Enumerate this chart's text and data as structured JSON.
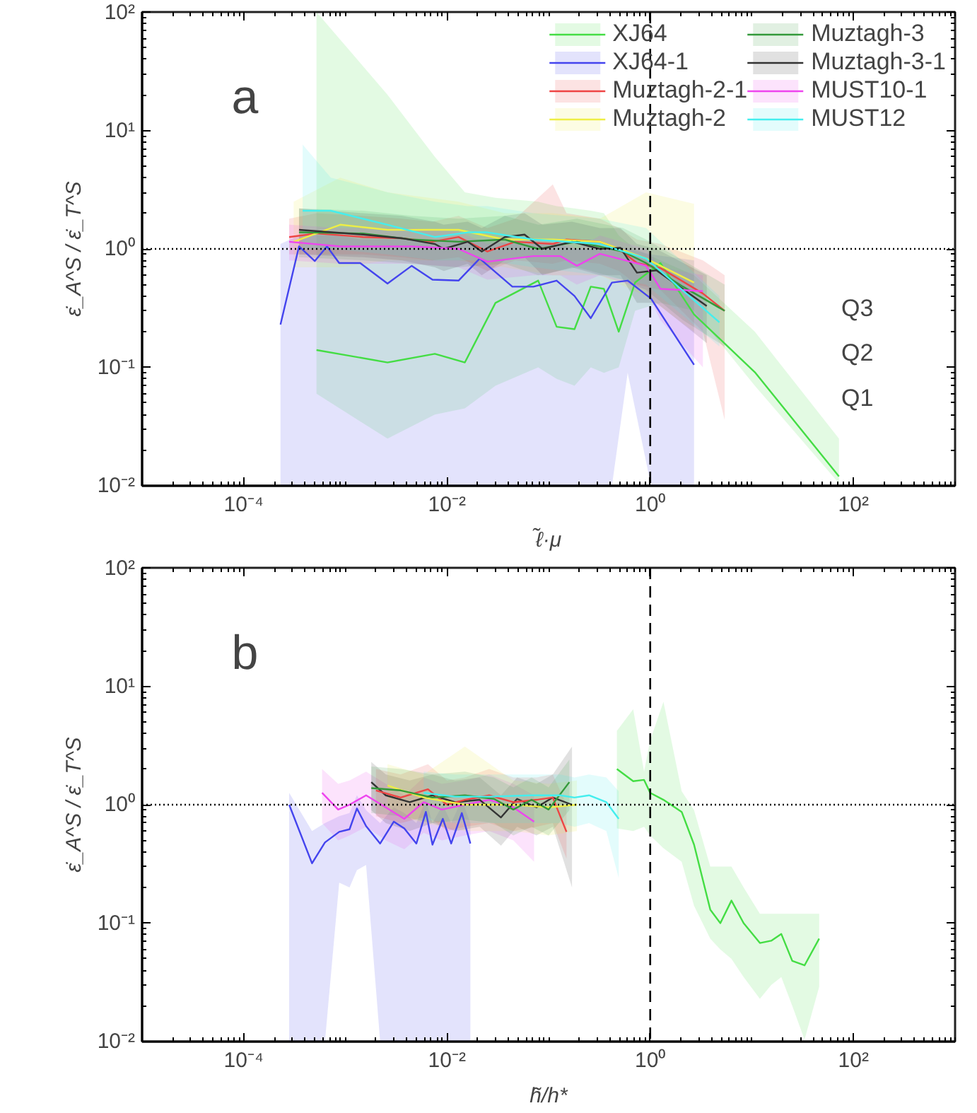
{
  "chart_data": [
    {
      "type": "line",
      "xlabel": "ℓ̃·μ",
      "ylabel": "ε̇_A^S / ε̇_T^S",
      "log": "xy",
      "grid": false,
      "legend": "top right",
      "xlim": [
        1e-05,
        1000
      ],
      "ylim": [
        0.01,
        100
      ],
      "xticks": [
        {
          "value": 0.0001,
          "label": "10⁻⁴"
        },
        {
          "value": 0.01,
          "label": "10⁻²"
        },
        {
          "value": 1,
          "label": "10⁰"
        },
        {
          "value": 100,
          "label": "10²"
        }
      ],
      "yticks": [
        {
          "value": 0.01,
          "label": "10⁻²"
        },
        {
          "value": 0.1,
          "label": "10⁻¹"
        },
        {
          "value": 1,
          "label": "10⁰"
        },
        {
          "value": 10,
          "label": "10¹"
        },
        {
          "value": 100,
          "label": "10²"
        }
      ],
      "ref_lines": [
        {
          "axis": "y",
          "value": 1,
          "line_style": "dotted",
          "color": "#000000"
        },
        {
          "axis": "x",
          "value": 1,
          "line_style": "dashed",
          "color": "#000000"
        }
      ],
      "annotations": [
        "a",
        "Q3",
        "Q2",
        "Q1"
      ],
      "series": [
        {
          "name": "XJ64",
          "color": "#44dd44",
          "x": [
            0.00052,
            0.0026,
            0.0076,
            0.015,
            0.03,
            0.079,
            0.12,
            0.18,
            0.26,
            0.35,
            0.49,
            0.71,
            1.26,
            2.7,
            10.7,
            72
          ],
          "values": [
            0.14,
            0.11,
            0.13,
            0.11,
            0.35,
            0.54,
            0.22,
            0.21,
            0.48,
            0.46,
            0.2,
            0.52,
            0.76,
            0.28,
            0.091,
            0.012
          ],
          "upper": [
            100,
            20,
            6,
            3,
            2.7,
            2.5,
            2.3,
            2.2,
            2.1,
            2,
            1.3,
            1,
            0.8,
            0.6,
            0.2,
            0.025
          ],
          "lower": [
            0.06,
            0.025,
            0.04,
            0.045,
            0.07,
            0.1,
            0.08,
            0.07,
            0.1,
            0.09,
            0.1,
            0.3,
            0.35,
            0.3,
            0.07,
            0.0105
          ]
        },
        {
          "name": "XJ64-1",
          "color": "#4444ee",
          "x": [
            0.00023,
            0.00035,
            0.0005,
            0.00066,
            0.00087,
            0.0014,
            0.0026,
            0.0045,
            0.0072,
            0.013,
            0.021,
            0.044,
            0.071,
            0.12,
            0.18,
            0.26,
            0.42,
            0.6,
            1.02,
            2.7
          ],
          "values": [
            0.23,
            1.05,
            0.79,
            1.05,
            0.76,
            0.76,
            0.51,
            0.72,
            0.55,
            0.54,
            0.83,
            0.48,
            0.48,
            0.54,
            0.4,
            0.26,
            0.52,
            0.54,
            0.38,
            0.105
          ],
          "upper": [
            1.1,
            1.3,
            1.3,
            1.3,
            1.3,
            1.2,
            1.2,
            1.2,
            1.2,
            1.2,
            1.2,
            1.1,
            1.1,
            1.1,
            1,
            1,
            1,
            1,
            0.9,
            0.8
          ],
          "lower": [
            0.01,
            0.01,
            0.01,
            0.01,
            0.01,
            0.01,
            0.01,
            0.01,
            0.01,
            0.01,
            0.01,
            0.01,
            0.01,
            0.01,
            0.01,
            0.01,
            0.01,
            0.09,
            0.01,
            0.01
          ]
        },
        {
          "name": "Muztagh-2-1",
          "color": "#ee4444",
          "x": [
            0.00028,
            0.00052,
            0.0015,
            0.0036,
            0.0072,
            0.013,
            0.025,
            0.047,
            0.11,
            0.15,
            0.32,
            0.49,
            0.74,
            1.26,
            3.3,
            5.4
          ],
          "values": [
            1.26,
            1.35,
            1.26,
            1.23,
            1.15,
            1.26,
            0.95,
            1.15,
            1.1,
            1.2,
            1.15,
            1,
            0.76,
            0.69,
            0.42,
            0.3
          ],
          "upper": [
            1.8,
            2,
            1.9,
            1.8,
            1.7,
            1.9,
            1.5,
            1.8,
            3.5,
            2,
            1.8,
            1.5,
            1.2,
            1.1,
            0.8,
            0.6
          ],
          "lower": [
            0.9,
            0.9,
            0.9,
            0.85,
            0.8,
            0.85,
            0.65,
            0.8,
            0.75,
            0.8,
            0.75,
            0.65,
            0.5,
            0.45,
            0.2,
            0.036
          ]
        },
        {
          "name": "Muztagh-2",
          "color": "#eeee44",
          "x": [
            0.00031,
            0.00089,
            0.0026,
            0.013,
            0.037,
            0.11,
            0.32,
            0.91,
            2.7
          ],
          "values": [
            1.15,
            1.6,
            1.45,
            1.45,
            1.2,
            1.2,
            1.15,
            0.83,
            0.52
          ],
          "upper": [
            2.5,
            4,
            3,
            2.5,
            2,
            2,
            1.8,
            3,
            2.4
          ],
          "lower": [
            0.7,
            0.7,
            0.8,
            0.8,
            0.7,
            0.6,
            0.6,
            0.4,
            0.2
          ]
        },
        {
          "name": "Muztagh-3",
          "color": "#33993a",
          "x": [
            0.00035,
            0.0015,
            0.0045,
            0.013,
            0.037,
            0.079,
            0.19,
            0.54,
            0.91,
            2.1,
            5.4
          ],
          "values": [
            1.38,
            1.35,
            1.2,
            1.15,
            1.2,
            1,
            1.15,
            0.95,
            0.76,
            0.48,
            0.3
          ],
          "upper": [
            2.2,
            2.1,
            1.9,
            1.8,
            1.9,
            1.6,
            1.8,
            1.5,
            1.2,
            0.8,
            0.5
          ],
          "lower": [
            0.85,
            0.8,
            0.75,
            0.7,
            0.75,
            0.6,
            0.7,
            0.55,
            0.45,
            0.25,
            0.15
          ]
        },
        {
          "name": "Muztagh-3-1",
          "color": "#333333",
          "x": [
            0.00035,
            0.0015,
            0.0036,
            0.0076,
            0.0093,
            0.016,
            0.022,
            0.037,
            0.058,
            0.087,
            0.17,
            0.32,
            0.51,
            0.74,
            1.15,
            3.6
          ],
          "values": [
            1.45,
            1.32,
            1.23,
            1.1,
            1,
            1.15,
            0.95,
            1.26,
            1.32,
            1,
            1.15,
            1,
            1.02,
            0.63,
            0.66,
            0.33
          ],
          "upper": [
            2.2,
            2,
            1.9,
            1.7,
            1.6,
            1.7,
            1.5,
            1.9,
            2,
            1.6,
            1.7,
            1.5,
            1.5,
            1.1,
            1,
            0.6
          ],
          "lower": [
            0.9,
            0.85,
            0.8,
            0.7,
            0.65,
            0.75,
            0.6,
            0.8,
            0.85,
            0.6,
            0.7,
            0.6,
            0.6,
            0.35,
            0.35,
            0.16
          ]
        },
        {
          "name": "MUST10-1",
          "color": "#ee44ee",
          "x": [
            0.00028,
            0.00089,
            0.0045,
            0.013,
            0.025,
            0.071,
            0.13,
            0.19,
            0.32,
            0.91,
            1.26,
            3.3
          ],
          "values": [
            1.15,
            1.05,
            1.05,
            1,
            0.78,
            0.87,
            0.87,
            0.72,
            0.91,
            0.72,
            0.46,
            0.44
          ],
          "upper": [
            1.6,
            1.5,
            1.5,
            1.4,
            1.1,
            1.2,
            1.2,
            1,
            1.3,
            1,
            0.7,
            0.6
          ],
          "lower": [
            0.8,
            0.75,
            0.75,
            0.7,
            0.55,
            0.6,
            0.6,
            0.5,
            0.6,
            0.45,
            0.25,
            0.1
          ]
        },
        {
          "name": "MUST12",
          "color": "#44eeee",
          "x": [
            0.00038,
            0.00072,
            0.0026,
            0.0076,
            0.016,
            0.025,
            0.071,
            0.32,
            0.91,
            4.8
          ],
          "values": [
            2.1,
            2.1,
            1.6,
            1.26,
            1.38,
            1.38,
            1.2,
            1.1,
            0.83,
            0.24
          ],
          "upper": [
            7.6,
            4,
            3,
            2.5,
            2.3,
            2.3,
            2,
            1.8,
            1.5,
            0.4
          ],
          "lower": [
            1,
            1,
            0.9,
            0.8,
            0.8,
            0.8,
            0.7,
            0.6,
            0.5,
            0.15
          ]
        }
      ]
    },
    {
      "type": "line",
      "xlabel": "h̃/h*",
      "ylabel": "ε̇_A^S / ε̇_T^S",
      "log": "xy",
      "grid": false,
      "xlim": [
        1e-05,
        1000
      ],
      "ylim": [
        0.01,
        100
      ],
      "xticks": [
        {
          "value": 0.0001,
          "label": "10⁻⁴"
        },
        {
          "value": 0.01,
          "label": "10⁻²"
        },
        {
          "value": 1,
          "label": "10⁰"
        },
        {
          "value": 100,
          "label": "10²"
        }
      ],
      "yticks": [
        {
          "value": 0.01,
          "label": "10⁻²"
        },
        {
          "value": 0.1,
          "label": "10⁻¹"
        },
        {
          "value": 1,
          "label": "10⁰"
        },
        {
          "value": 10,
          "label": "10¹"
        },
        {
          "value": 100,
          "label": "10²"
        }
      ],
      "ref_lines": [
        {
          "axis": "y",
          "value": 1,
          "line_style": "dotted",
          "color": "#000000"
        },
        {
          "axis": "x",
          "value": 1,
          "line_style": "dashed",
          "color": "#000000"
        }
      ],
      "annotations": [
        "b"
      ],
      "series": [
        {
          "color": "#4444ee",
          "x": [
            0.00028,
            0.00047,
            0.00063,
            0.00087,
            0.0011,
            0.0013,
            0.0016,
            0.0022,
            0.003,
            0.0038,
            0.005,
            0.0062,
            0.0072,
            0.0091,
            0.011,
            0.014,
            0.017
          ],
          "values": [
            1,
            0.32,
            0.48,
            0.59,
            0.62,
            0.93,
            0.66,
            0.47,
            0.72,
            0.63,
            0.47,
            0.87,
            0.46,
            0.76,
            0.47,
            0.85,
            0.47
          ],
          "upper": [
            1.26,
            0.6,
            0.7,
            0.8,
            0.85,
            1.2,
            0.9,
            0.7,
            0.95,
            0.85,
            0.7,
            1.1,
            0.7,
            1,
            0.7,
            1.1,
            0.7
          ],
          "lower": [
            0.01,
            0.01,
            0.01,
            0.22,
            0.2,
            0.28,
            0.31,
            0.01,
            0.01,
            0.01,
            0.01,
            0.01,
            0.01,
            0.01,
            0.01,
            0.01,
            0.01
          ]
        },
        {
          "color": "#ee44ee",
          "x": [
            0.00059,
            0.00085,
            0.0011,
            0.0016,
            0.0025,
            0.0038,
            0.0059,
            0.0089,
            0.015,
            0.026,
            0.045,
            0.072
          ],
          "values": [
            1.26,
            0.91,
            1,
            1.2,
            0.95,
            0.76,
            1.05,
            0.91,
            1,
            1.1,
            0.95,
            0.72
          ],
          "upper": [
            2,
            1.5,
            1.6,
            1.9,
            1.5,
            1.2,
            1.7,
            1.5,
            1.6,
            1.8,
            1.5,
            1.2
          ],
          "lower": [
            0.7,
            0.5,
            0.55,
            0.65,
            0.5,
            0.42,
            0.58,
            0.5,
            0.55,
            0.6,
            0.5,
            0.33
          ]
        },
        {
          "color": "#333333",
          "x": [
            0.0018,
            0.0025,
            0.0043,
            0.0072,
            0.012,
            0.021,
            0.034,
            0.049,
            0.076,
            0.11,
            0.17
          ],
          "values": [
            1.55,
            1.2,
            1.05,
            1.2,
            1.05,
            1.1,
            0.78,
            1.12,
            0.95,
            1.15,
            1
          ],
          "upper": [
            2.3,
            1.8,
            1.6,
            1.8,
            1.6,
            1.7,
            1.2,
            1.7,
            1.5,
            1.8,
            3.1
          ],
          "lower": [
            0.9,
            0.7,
            0.6,
            0.7,
            0.6,
            0.65,
            0.45,
            0.65,
            0.55,
            0.65,
            0.2
          ]
        },
        {
          "color": "#ee4444",
          "x": [
            0.002,
            0.0035,
            0.0065,
            0.01,
            0.015,
            0.026,
            0.045,
            0.076,
            0.11,
            0.15
          ],
          "values": [
            1.32,
            1.15,
            1.35,
            1,
            1.1,
            1.2,
            1.05,
            1.1,
            1.15,
            0.59
          ],
          "upper": [
            2,
            1.8,
            2.2,
            1.6,
            1.7,
            2,
            1.7,
            1.7,
            1.8,
            1
          ],
          "lower": [
            0.8,
            0.7,
            0.8,
            0.6,
            0.65,
            0.7,
            0.6,
            0.65,
            0.7,
            0.35
          ]
        },
        {
          "color": "#eeee44",
          "x": [
            0.0026,
            0.0059,
            0.015,
            0.045,
            0.1,
            0.19
          ],
          "values": [
            1.45,
            1.15,
            1,
            1,
            0.95,
            1
          ],
          "upper": [
            2.2,
            1.8,
            3.1,
            1.6,
            1.5,
            1.6
          ],
          "lower": [
            0.9,
            0.7,
            0.6,
            0.6,
            0.55,
            0.6
          ]
        },
        {
          "color": "#33993a",
          "x": [
            0.0018,
            0.0035,
            0.0072,
            0.015,
            0.029,
            0.045,
            0.068,
            0.1,
            0.16
          ],
          "values": [
            1.38,
            1.32,
            1.15,
            1.2,
            1.12,
            0.91,
            1.1,
            0.91,
            1.55
          ],
          "upper": [
            2.1,
            2,
            1.8,
            1.9,
            1.7,
            1.4,
            1.7,
            1.4,
            2.4
          ],
          "lower": [
            0.85,
            0.8,
            0.7,
            0.75,
            0.7,
            0.55,
            0.65,
            0.55,
            0.9
          ]
        },
        {
          "color": "#44eeee",
          "x": [
            0.0059,
            0.012,
            0.026,
            0.068,
            0.13,
            0.18,
            0.25,
            0.37,
            0.49
          ],
          "values": [
            1.26,
            1.17,
            1.17,
            1.2,
            1.2,
            1.15,
            1.2,
            1.05,
            0.76
          ],
          "upper": [
            1.9,
            1.8,
            1.8,
            1.8,
            1.8,
            1.7,
            1.8,
            1.7,
            1.3
          ],
          "lower": [
            0.75,
            0.7,
            0.7,
            0.7,
            0.7,
            0.65,
            0.7,
            0.6,
            0.24
          ]
        },
        {
          "color": "#44dd44",
          "x": [
            0.47,
            0.68,
            0.87,
            1,
            1.35,
            2.04,
            2.7,
            3.9,
            4.9,
            6.3,
            8.3,
            12,
            15.5,
            19.5,
            25,
            33,
            46
          ],
          "values": [
            2,
            1.58,
            1.62,
            1.26,
            1.1,
            0.87,
            0.46,
            0.13,
            0.1,
            0.155,
            0.1,
            0.068,
            0.071,
            0.081,
            0.048,
            0.044,
            0.074
          ],
          "upper": [
            4.2,
            6.4,
            1.9,
            3.5,
            7.4,
            1.3,
            0.9,
            0.3,
            0.3,
            0.3,
            0.2,
            0.12,
            0.12,
            0.12,
            0.12,
            0.12,
            0.12
          ],
          "lower": [
            0.63,
            0.6,
            0.65,
            0.55,
            0.43,
            0.33,
            0.14,
            0.074,
            0.06,
            0.05,
            0.035,
            0.023,
            0.03,
            0.035,
            0.02,
            0.0104,
            0.029
          ]
        }
      ]
    }
  ]
}
